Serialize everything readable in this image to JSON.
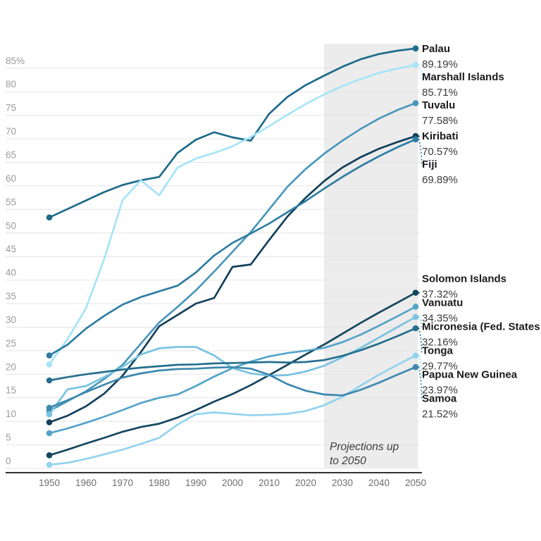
{
  "chart": {
    "projection_note_line1": "Projections up",
    "projection_note_line2": "to 2050",
    "projection_start_year": 2025,
    "colors": {
      "grid": "#e4e4e4",
      "band": "#ececec",
      "axis_line": "#333333",
      "y_tick_text": "#9b9b9b",
      "x_tick_text": "#6e6e6e",
      "label_name_text": "#1a1a1a",
      "label_value_text": "#3a3a3a",
      "note_text": "#3d3d3d"
    },
    "y_ticks": [
      {
        "value": 85,
        "label": "85%"
      },
      {
        "value": 80,
        "label": "80"
      },
      {
        "value": 75,
        "label": "75"
      },
      {
        "value": 70,
        "label": "70"
      },
      {
        "value": 65,
        "label": "65"
      },
      {
        "value": 60,
        "label": "60"
      },
      {
        "value": 55,
        "label": "55"
      },
      {
        "value": 50,
        "label": "50"
      },
      {
        "value": 45,
        "label": "45"
      },
      {
        "value": 40,
        "label": "40"
      },
      {
        "value": 35,
        "label": "35"
      },
      {
        "value": 30,
        "label": "30"
      },
      {
        "value": 25,
        "label": "25"
      },
      {
        "value": 20,
        "label": "20"
      },
      {
        "value": 15,
        "label": "15"
      },
      {
        "value": 10,
        "label": "10"
      },
      {
        "value": 5,
        "label": "5"
      },
      {
        "value": 0,
        "label": "0"
      }
    ],
    "x_ticks": [
      1950,
      1960,
      1970,
      1980,
      1990,
      2000,
      2010,
      2020,
      2030,
      2040,
      2050
    ]
  },
  "chart_data": {
    "type": "line",
    "title": "",
    "xlabel": "",
    "ylabel": "",
    "ylim": [
      0,
      90
    ],
    "xlim": [
      1950,
      2050
    ],
    "grid": true,
    "annotation": "Projections up to 2050 (shaded band 2025-2050)",
    "x": [
      1950,
      1955,
      1960,
      1965,
      1970,
      1975,
      1980,
      1985,
      1990,
      1995,
      2000,
      2005,
      2010,
      2015,
      2020,
      2025,
      2030,
      2035,
      2040,
      2045,
      2050
    ],
    "series": [
      {
        "name": "Palau",
        "end_label": "89.19%",
        "end_value": 89.19,
        "color": "#1e6b8a",
        "leader": false,
        "values": [
          53.3,
          55.1,
          56.9,
          58.7,
          60.2,
          61.2,
          61.9,
          67.0,
          69.8,
          71.4,
          70.3,
          69.6,
          75.3,
          78.9,
          81.4,
          83.4,
          85.3,
          86.9,
          88.0,
          88.7,
          89.19
        ]
      },
      {
        "name": "Marshall Islands",
        "end_label": "85.71%",
        "end_value": 85.71,
        "color": "#a6e4f7",
        "leader": true,
        "values": [
          22.1,
          27.5,
          34.0,
          44.5,
          57.0,
          61.2,
          58.0,
          63.9,
          65.8,
          67.0,
          68.4,
          70.4,
          72.7,
          75.1,
          77.4,
          79.4,
          81.2,
          82.7,
          84.0,
          84.9,
          85.71
        ]
      },
      {
        "name": "Tuvalu",
        "end_label": "77.58%",
        "end_value": 77.58,
        "color": "#4a97bc",
        "leader": false,
        "values": [
          12.2,
          14.3,
          16.4,
          19.0,
          22.0,
          26.5,
          31.0,
          34.3,
          37.8,
          41.8,
          46.0,
          50.2,
          55.0,
          59.8,
          63.6,
          66.8,
          69.6,
          72.1,
          74.3,
          76.1,
          77.58
        ]
      },
      {
        "name": "Kiribati",
        "end_label": "70.57%",
        "end_value": 70.57,
        "color": "#123f5a",
        "leader": true,
        "values": [
          9.8,
          11.2,
          13.2,
          15.9,
          19.7,
          24.7,
          30.2,
          32.6,
          35.0,
          36.2,
          42.8,
          43.3,
          48.5,
          53.5,
          57.5,
          61.0,
          63.9,
          66.1,
          67.9,
          69.3,
          70.57
        ]
      },
      {
        "name": "Fiji",
        "end_label": "69.89%",
        "end_value": 69.89,
        "color": "#2e7da3",
        "leader": true,
        "values": [
          24.0,
          26.3,
          29.7,
          32.4,
          34.8,
          36.4,
          37.6,
          38.8,
          41.6,
          45.2,
          47.9,
          49.9,
          52.0,
          54.4,
          56.8,
          59.4,
          61.9,
          64.2,
          66.3,
          68.2,
          69.89
        ]
      },
      {
        "name": "Solomon Islands",
        "end_label": "37.32%",
        "end_value": 37.32,
        "color": "#15465f",
        "leader": true,
        "values": [
          2.8,
          4.0,
          5.3,
          6.5,
          7.8,
          8.8,
          9.5,
          10.8,
          12.4,
          14.2,
          15.8,
          17.7,
          19.8,
          22.0,
          24.2,
          26.3,
          28.6,
          30.9,
          33.1,
          35.2,
          37.32
        ]
      },
      {
        "name": "Vanuatu",
        "end_label": "34.35%",
        "end_value": 34.35,
        "color": "#55a4c8",
        "leader": false,
        "values": [
          7.5,
          8.5,
          9.7,
          11.0,
          12.4,
          13.9,
          15.0,
          15.7,
          17.5,
          19.5,
          21.3,
          22.7,
          23.8,
          24.5,
          25.0,
          25.6,
          26.8,
          28.4,
          30.3,
          32.3,
          34.35
        ]
      },
      {
        "name": "Micronesia (Fed. States of)",
        "end_label": "32.16%",
        "end_value": 32.16,
        "color": "#79c2e2",
        "leader": true,
        "values": [
          11.5,
          16.8,
          17.5,
          19.4,
          21.6,
          24.2,
          25.5,
          25.8,
          25.8,
          24.0,
          21.3,
          20.2,
          19.7,
          19.8,
          20.6,
          21.8,
          23.6,
          25.6,
          27.8,
          30.0,
          32.16
        ]
      },
      {
        "name": "Tonga",
        "end_label": "29.77%",
        "end_value": 29.77,
        "color": "#256f8e",
        "leader": true,
        "values": [
          18.7,
          19.4,
          20.0,
          20.5,
          21.0,
          21.4,
          21.7,
          22.0,
          22.1,
          22.3,
          22.4,
          22.5,
          22.6,
          22.5,
          22.6,
          23.0,
          23.9,
          25.1,
          26.5,
          28.1,
          29.77
        ]
      },
      {
        "name": "Papua New Guinea",
        "end_label": "23.97%",
        "end_value": 23.97,
        "color": "#93d3ef",
        "leader": true,
        "values": [
          0.8,
          1.2,
          2.0,
          3.0,
          4.0,
          5.2,
          6.5,
          9.3,
          11.5,
          11.9,
          11.6,
          11.3,
          11.4,
          11.6,
          12.2,
          13.4,
          15.2,
          17.6,
          19.9,
          22.0,
          23.97
        ]
      },
      {
        "name": "Samoa",
        "end_label": "21.52%",
        "end_value": 21.52,
        "color": "#3d89ad",
        "leader": true,
        "values": [
          12.9,
          14.5,
          16.2,
          17.8,
          19.3,
          20.2,
          20.8,
          21.1,
          21.2,
          21.4,
          21.5,
          21.2,
          19.9,
          17.9,
          16.5,
          15.7,
          15.5,
          16.7,
          18.2,
          19.9,
          21.52
        ]
      }
    ]
  }
}
